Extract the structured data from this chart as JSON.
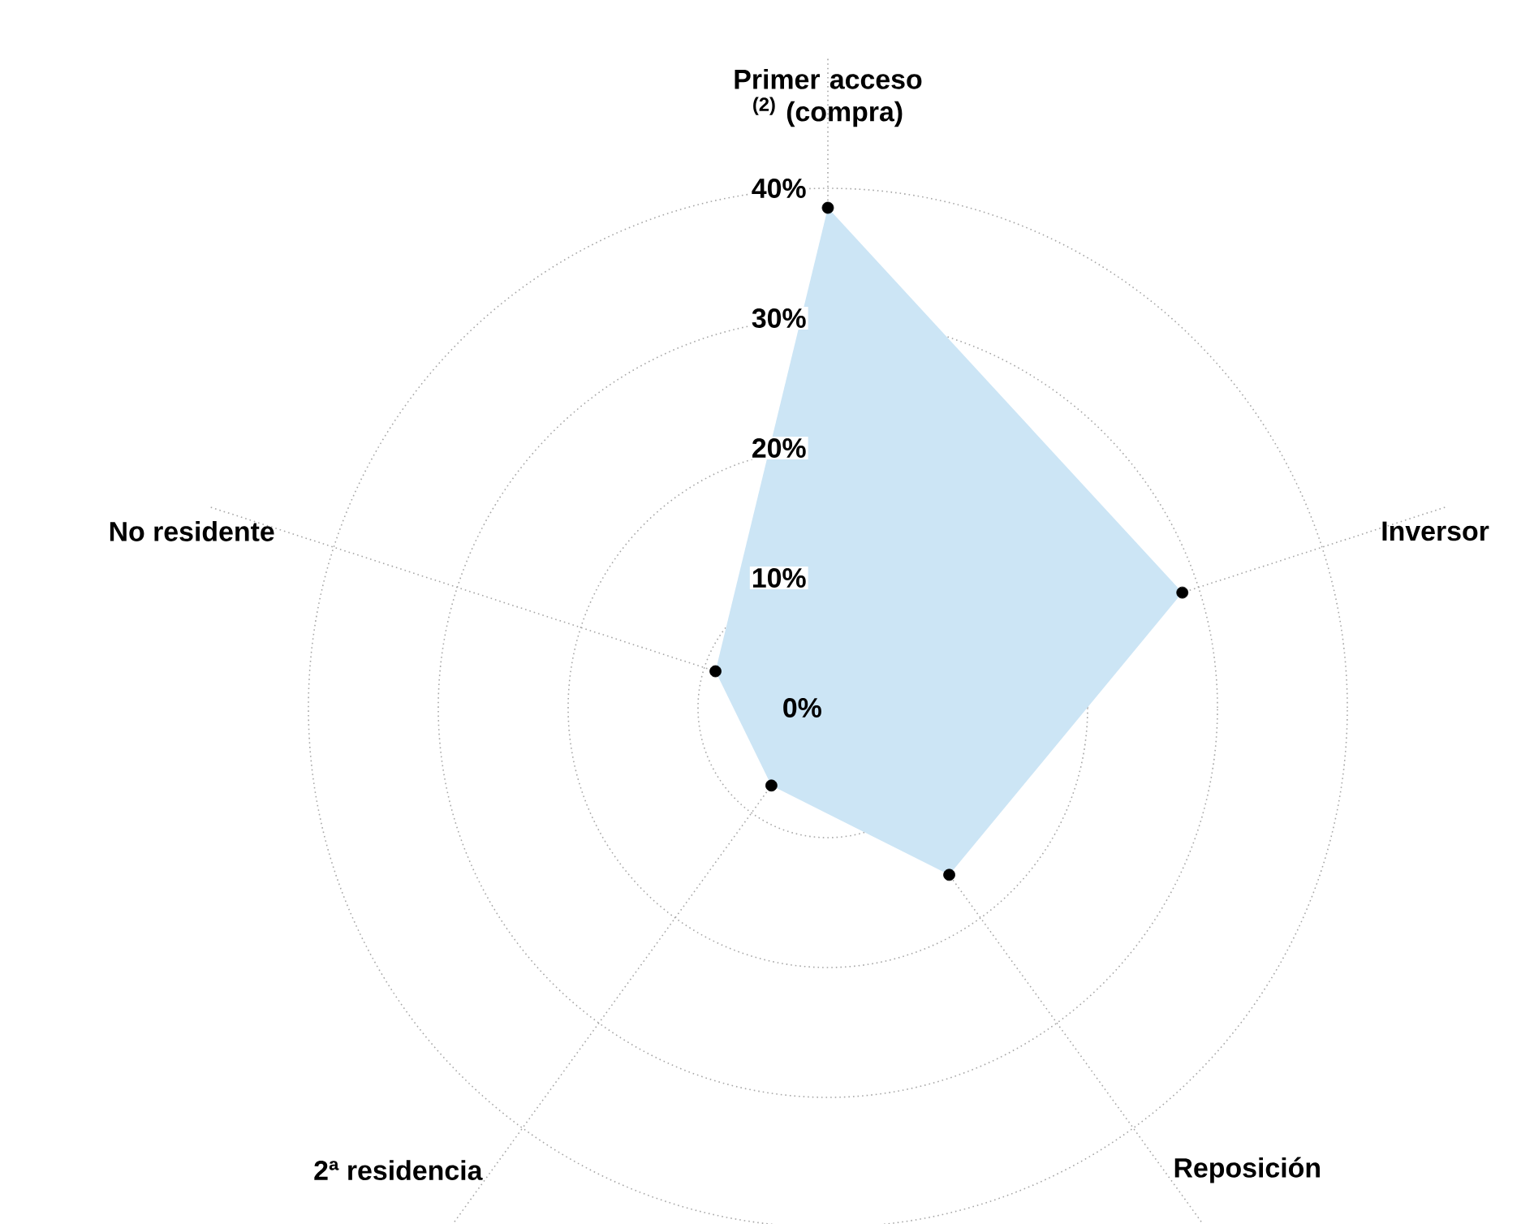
{
  "chart_data": {
    "type": "radar",
    "categories": [
      "Primer acceso $^{(2)}$ (compra)",
      "Inversor",
      "Reposición",
      "2ª residencia",
      "No residente"
    ],
    "series": [
      {
        "color": "#cce5f5",
        "values": [
          38.5,
          28.7,
          15.9,
          7.4,
          9.1
        ]
      }
    ],
    "ylim": [
      0,
      40
    ],
    "yticks": [
      {
        "value": 0,
        "label": "0%"
      },
      {
        "value": 10,
        "label": "10%"
      },
      {
        "value": 20,
        "label": "20%"
      },
      {
        "value": 30,
        "label": "30%"
      },
      {
        "value": 40,
        "label": "40%"
      }
    ],
    "grid": true,
    "marker": "circle"
  }
}
